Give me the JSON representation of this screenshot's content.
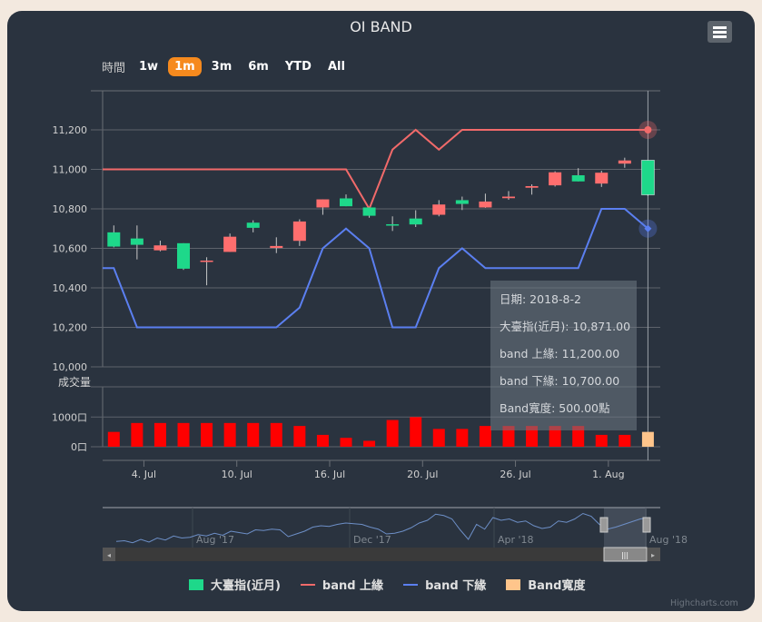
{
  "header": {
    "title": "OI BAND"
  },
  "range_selector": {
    "label": "時間",
    "buttons": [
      "1w",
      "1m",
      "3m",
      "6m",
      "YTD",
      "All"
    ],
    "active": "1m"
  },
  "colors": {
    "up": "#ff6e6e",
    "down": "#1ed88a",
    "upper": "#f16a6a",
    "lower": "#5b7ff0",
    "bar": "#ff0000",
    "bar_hover": "#ffc58b",
    "nav": "#6d8fc7",
    "active": "#f68a1e"
  },
  "chart_data": {
    "type": "candlestick",
    "title": "OI BAND",
    "dates": [
      "2018-7-2",
      "2018-7-3",
      "2018-7-4",
      "2018-7-5",
      "2018-7-6",
      "2018-7-9",
      "2018-7-10",
      "2018-7-11",
      "2018-7-12",
      "2018-7-13",
      "2018-7-16",
      "2018-7-17",
      "2018-7-18",
      "2018-7-19",
      "2018-7-20",
      "2018-7-23",
      "2018-7-24",
      "2018-7-25",
      "2018-7-26",
      "2018-7-27",
      "2018-7-30",
      "2018-7-31",
      "2018-8-1",
      "2018-8-2"
    ],
    "ohlc": [
      [
        10681,
        10716,
        10605,
        10609
      ],
      [
        10650,
        10716,
        10544,
        10618
      ],
      [
        10590,
        10639,
        10585,
        10615
      ],
      [
        10626,
        10626,
        10491,
        10497
      ],
      [
        10532,
        10555,
        10413,
        10538
      ],
      [
        10582,
        10675,
        10582,
        10659
      ],
      [
        10730,
        10742,
        10681,
        10704
      ],
      [
        10602,
        10656,
        10576,
        10612
      ],
      [
        10638,
        10747,
        10612,
        10736
      ],
      [
        10807,
        10848,
        10770,
        10848
      ],
      [
        10853,
        10873,
        10813,
        10813
      ],
      [
        10807,
        10807,
        10755,
        10765
      ],
      [
        10722,
        10762,
        10688,
        10715
      ],
      [
        10751,
        10793,
        10708,
        10721
      ],
      [
        10770,
        10844,
        10762,
        10822
      ],
      [
        10844,
        10862,
        10794,
        10825
      ],
      [
        10807,
        10877,
        10805,
        10837
      ],
      [
        10854,
        10890,
        10846,
        10862
      ],
      [
        10907,
        10924,
        10872,
        10915
      ],
      [
        10919,
        10990,
        10913,
        10985
      ],
      [
        10970,
        11006,
        10939,
        10939
      ],
      [
        10928,
        10993,
        10911,
        10983
      ],
      [
        11029,
        11059,
        11008,
        11045
      ],
      [
        11046,
        11046,
        10865,
        10871
      ]
    ],
    "series": [
      {
        "name": "大臺指(近月)"
      },
      {
        "name": "band 上緣",
        "values": [
          11000,
          11000,
          11000,
          11000,
          11000,
          11000,
          11000,
          11000,
          11000,
          11000,
          11000,
          10800,
          11100,
          11200,
          11100,
          11200,
          11200,
          11200,
          11200,
          11200,
          11200,
          11200,
          11200,
          11200
        ]
      },
      {
        "name": "band 下緣",
        "values": [
          10500,
          10200,
          10200,
          10200,
          10200,
          10200,
          10200,
          10200,
          10300,
          10600,
          10700,
          10600,
          10200,
          10200,
          10500,
          10600,
          10500,
          10500,
          10500,
          10500,
          10500,
          10800,
          10800,
          10700
        ]
      },
      {
        "name": "Band寬度",
        "values": [
          500,
          800,
          800,
          800,
          800,
          800,
          800,
          800,
          700,
          400,
          300,
          200,
          900,
          1000,
          600,
          600,
          700,
          700,
          700,
          700,
          700,
          400,
          400,
          500
        ]
      }
    ],
    "y_axis": {
      "ticks": [
        "10,000",
        "10,200",
        "10,400",
        "10,600",
        "10,800",
        "11,000",
        "11,200"
      ],
      "tick_values": [
        10000,
        10200,
        10400,
        10600,
        10800,
        11000,
        11200
      ],
      "range": [
        10000,
        11400
      ]
    },
    "y2_axis": {
      "title": "成交量",
      "ticks": [
        "0口",
        "1000口"
      ],
      "tick_values": [
        0,
        1000
      ]
    },
    "x_axis": {
      "ticks": [
        "4. Jul",
        "10. Jul",
        "16. Jul",
        "20. Jul",
        "26. Jul",
        "1. Aug"
      ],
      "tick_index": [
        2,
        6,
        10,
        14,
        18,
        22
      ]
    },
    "navigator": {
      "labels": [
        "Aug '17",
        "Dec '17",
        "Apr '18",
        "Aug '18"
      ],
      "values": [
        10150,
        10160,
        10130,
        10180,
        10140,
        10200,
        10170,
        10230,
        10200,
        10210,
        10250,
        10230,
        10270,
        10240,
        10300,
        10280,
        10260,
        10320,
        10310,
        10330,
        10320,
        10220,
        10260,
        10300,
        10360,
        10380,
        10370,
        10400,
        10420,
        10410,
        10400,
        10360,
        10330,
        10260,
        10270,
        10300,
        10350,
        10420,
        10460,
        10550,
        10530,
        10480,
        10320,
        10180,
        10400,
        10330,
        10500,
        10460,
        10480,
        10430,
        10450,
        10380,
        10340,
        10360,
        10450,
        10430,
        10480,
        10560,
        10520,
        10400,
        10330,
        10360,
        10400,
        10440,
        10480,
        10500
      ]
    },
    "tooltip": {
      "date": "日期: 2018-8-2",
      "close": "大臺指(近月): 10,871.00",
      "upper": "band 上緣: 11,200.00",
      "lower": "band 下緣: 10,700.00",
      "width": "Band寬度: 500.00點"
    }
  },
  "credit": "Highcharts.com"
}
